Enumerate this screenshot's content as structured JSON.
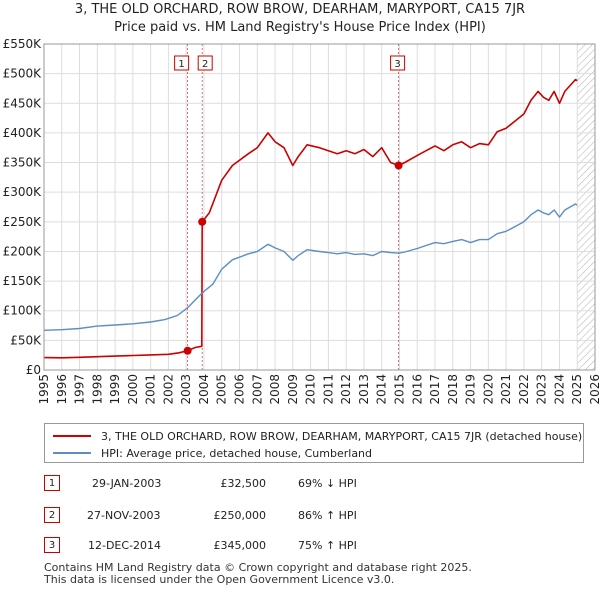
{
  "title_line1": "3, THE OLD ORCHARD, ROW BROW, DEARHAM, MARYPORT, CA15 7JR",
  "title_line2": "Price paid vs. HM Land Registry's House Price Index (HPI)",
  "colors": {
    "property": "#cc0000",
    "hpi": "#5b8ec4",
    "hatch": "#bbbbbb",
    "grid": "#dddddd",
    "marker": "#cc0000"
  },
  "legend": {
    "property": "3, THE OLD ORCHARD, ROW BROW, DEARHAM, MARYPORT, CA15 7JR (detached house)",
    "hpi": "HPI: Average price, detached house, Cumberland"
  },
  "transactions": [
    {
      "num": "1",
      "date": "29-JAN-2003",
      "price": "£32,500",
      "hpi": "69% ↓ HPI"
    },
    {
      "num": "2",
      "date": "27-NOV-2003",
      "price": "£250,000",
      "hpi": "86% ↑ HPI"
    },
    {
      "num": "3",
      "date": "12-DEC-2014",
      "price": "£345,000",
      "hpi": "75% ↑ HPI"
    }
  ],
  "footer": {
    "line1": "Contains HM Land Registry data © Crown copyright and database right 2025.",
    "line2": "This data is licensed under the Open Government Licence v3.0."
  },
  "chart_data": {
    "type": "line",
    "xlim": [
      1995,
      2026
    ],
    "ylim": [
      0,
      550000
    ],
    "x_ticks": [
      1995,
      1996,
      1997,
      1998,
      1999,
      2000,
      2001,
      2002,
      2003,
      2004,
      2005,
      2006,
      2007,
      2008,
      2009,
      2010,
      2011,
      2012,
      2013,
      2014,
      2015,
      2016,
      2017,
      2018,
      2019,
      2020,
      2021,
      2022,
      2023,
      2024,
      2025,
      2026
    ],
    "y_ticks": [
      {
        "value": 0,
        "label": "£0"
      },
      {
        "value": 50000,
        "label": "£50K"
      },
      {
        "value": 100000,
        "label": "£100K"
      },
      {
        "value": 150000,
        "label": "£150K"
      },
      {
        "value": 200000,
        "label": "£200K"
      },
      {
        "value": 250000,
        "label": "£250K"
      },
      {
        "value": 300000,
        "label": "£300K"
      },
      {
        "value": 350000,
        "label": "£350K"
      },
      {
        "value": 400000,
        "label": "£400K"
      },
      {
        "value": 450000,
        "label": "£450K"
      },
      {
        "value": 500000,
        "label": "£500K"
      },
      {
        "value": 550000,
        "label": "£550K"
      }
    ],
    "hatch_from": 2025.0,
    "sale_markers": [
      {
        "label": "1",
        "x": 2003.08,
        "y": 32500
      },
      {
        "label": "2",
        "x": 2003.9,
        "y": 250000
      },
      {
        "label": "3",
        "x": 2014.95,
        "y": 345000
      }
    ],
    "series": [
      {
        "name": "property",
        "x": [
          1995.0,
          1996.0,
          1997.0,
          1998.0,
          1999.0,
          2000.0,
          2001.0,
          2002.0,
          2002.6,
          2003.08,
          2003.5,
          2003.88,
          2003.9,
          2004.3,
          2005.0,
          2005.6,
          2006.5,
          2007.0,
          2007.6,
          2008.0,
          2008.5,
          2009.0,
          2009.3,
          2009.8,
          2010.5,
          2011.0,
          2011.5,
          2012.0,
          2012.5,
          2013.0,
          2013.5,
          2014.0,
          2014.5,
          2014.95,
          2015.3,
          2016.0,
          2016.5,
          2017.0,
          2017.5,
          2018.0,
          2018.5,
          2019.0,
          2019.5,
          2020.0,
          2020.5,
          2021.0,
          2021.5,
          2022.0,
          2022.4,
          2022.8,
          2023.1,
          2023.4,
          2023.7,
          2024.0,
          2024.3,
          2024.6,
          2024.9,
          2025.0
        ],
        "y": [
          21000,
          20500,
          21500,
          22500,
          23500,
          24500,
          25500,
          26500,
          29000,
          32500,
          38000,
          40000,
          250000,
          265000,
          320000,
          345000,
          365000,
          375000,
          400000,
          385000,
          375000,
          345000,
          360000,
          380000,
          375000,
          370000,
          365000,
          370000,
          365000,
          372000,
          360000,
          375000,
          350000,
          345000,
          350000,
          362000,
          370000,
          378000,
          370000,
          380000,
          385000,
          375000,
          382000,
          380000,
          402000,
          408000,
          420000,
          432000,
          455000,
          470000,
          460000,
          455000,
          470000,
          450000,
          470000,
          480000,
          490000,
          488000
        ]
      },
      {
        "name": "hpi",
        "x": [
          1995.0,
          1996.0,
          1997.0,
          1998.0,
          1999.0,
          2000.0,
          2001.0,
          2001.8,
          2002.5,
          2003.08,
          2003.9,
          2004.5,
          2005.0,
          2005.6,
          2006.5,
          2007.0,
          2007.6,
          2008.0,
          2008.5,
          2009.0,
          2009.3,
          2009.8,
          2010.5,
          2011.0,
          2011.5,
          2012.0,
          2012.5,
          2013.0,
          2013.5,
          2014.0,
          2014.5,
          2014.95,
          2015.3,
          2016.0,
          2016.5,
          2017.0,
          2017.5,
          2018.0,
          2018.5,
          2019.0,
          2019.5,
          2020.0,
          2020.5,
          2021.0,
          2021.5,
          2022.0,
          2022.4,
          2022.8,
          2023.1,
          2023.4,
          2023.7,
          2024.0,
          2024.3,
          2024.6,
          2024.9,
          2025.0
        ],
        "y": [
          67000,
          68000,
          70000,
          74000,
          76000,
          78000,
          81000,
          85000,
          92000,
          105000,
          130000,
          145000,
          170000,
          186000,
          196000,
          200000,
          212000,
          206000,
          200000,
          185000,
          193000,
          203000,
          200000,
          198000,
          196000,
          198000,
          195000,
          196000,
          193000,
          200000,
          198000,
          197000,
          199000,
          205000,
          210000,
          215000,
          213000,
          217000,
          220000,
          215000,
          220000,
          220000,
          230000,
          234000,
          242000,
          250000,
          262000,
          270000,
          265000,
          262000,
          270000,
          258000,
          270000,
          275000,
          280000,
          278000
        ]
      }
    ]
  }
}
